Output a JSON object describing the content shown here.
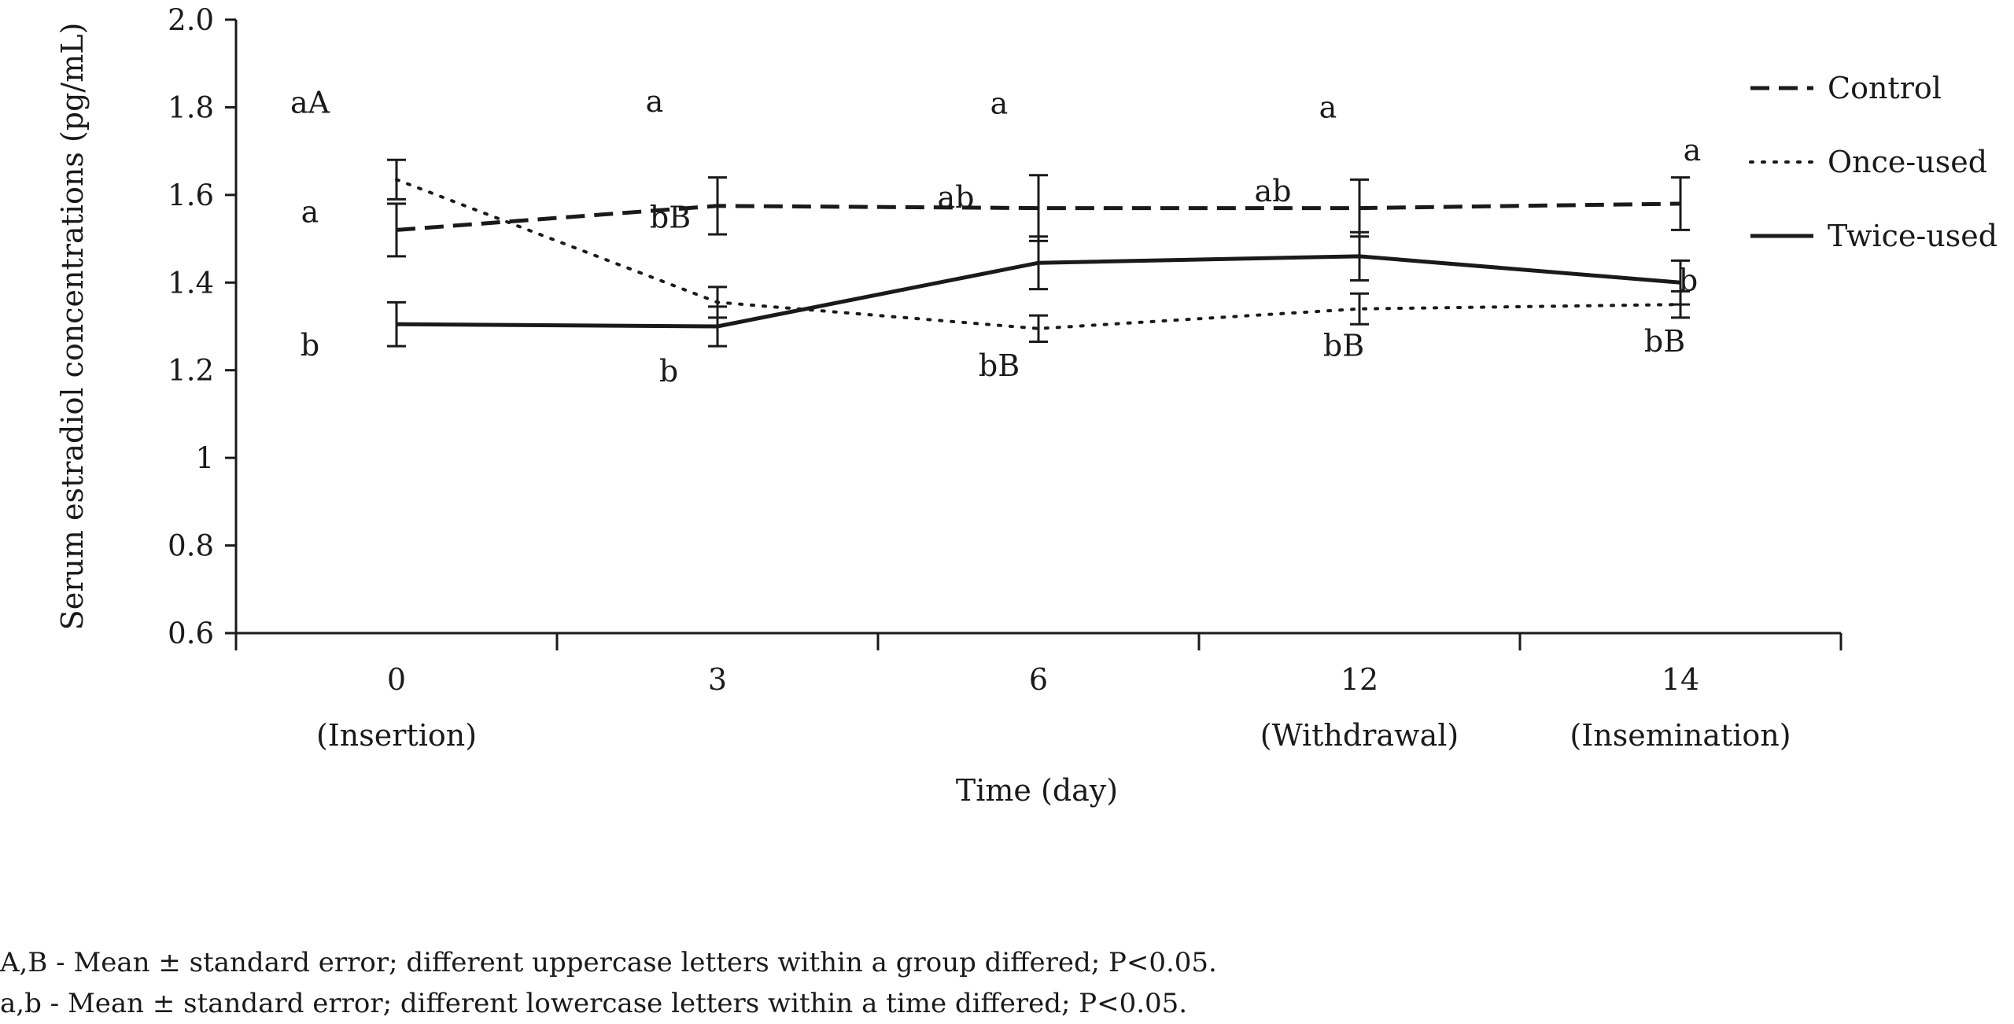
{
  "chart_data": {
    "type": "line",
    "title": "",
    "ylabel": "Serum estradiol concentrations (pg/mL)",
    "xlabel": "Time (day)",
    "ylim": [
      0.6,
      2.0
    ],
    "yticks": [
      "0.6",
      "0.8",
      "1",
      "1.2",
      "1.4",
      "1.6",
      "1.8",
      "2.0"
    ],
    "yticks_values": [
      0.6,
      0.8,
      1.0,
      1.2,
      1.4,
      1.6,
      1.8,
      2.0
    ],
    "categories": [
      "0",
      "3",
      "6",
      "12",
      "14"
    ],
    "category_sublabels": [
      "(Insertion)",
      "",
      "",
      "(Withdrawal)",
      "(Insemination)"
    ],
    "grid": false,
    "legend_position": "right",
    "series": [
      {
        "name": "Control",
        "style": "dashed",
        "values": [
          1.52,
          1.575,
          1.57,
          1.57,
          1.58
        ],
        "errors": [
          0.06,
          0.065,
          0.075,
          0.065,
          0.06
        ],
        "labels": [
          "a",
          "a",
          "a",
          "a",
          "a"
        ]
      },
      {
        "name": "Once-used",
        "style": "dotted",
        "values": [
          1.635,
          1.355,
          1.295,
          1.34,
          1.35
        ],
        "errors": [
          0.045,
          0.035,
          0.03,
          0.035,
          0.03
        ],
        "labels": [
          "aA",
          "bB",
          "bB",
          "bB",
          "bB"
        ]
      },
      {
        "name": "Twice-used",
        "style": "solid",
        "values": [
          1.305,
          1.3,
          1.445,
          1.46,
          1.4
        ],
        "errors": [
          0.05,
          0.045,
          0.06,
          0.055,
          0.05
        ],
        "labels": [
          "b",
          "b",
          "ab",
          "ab",
          "b"
        ]
      }
    ],
    "colors": {
      "line": "#1a1a1a"
    }
  },
  "footnotes": {
    "uppercase": "A,B - Mean ± standard error; different uppercase letters within a group differed; P<0.05.",
    "lowercase": "a,b - Mean ± standard error; different lowercase letters within a time differed; P<0.05."
  }
}
